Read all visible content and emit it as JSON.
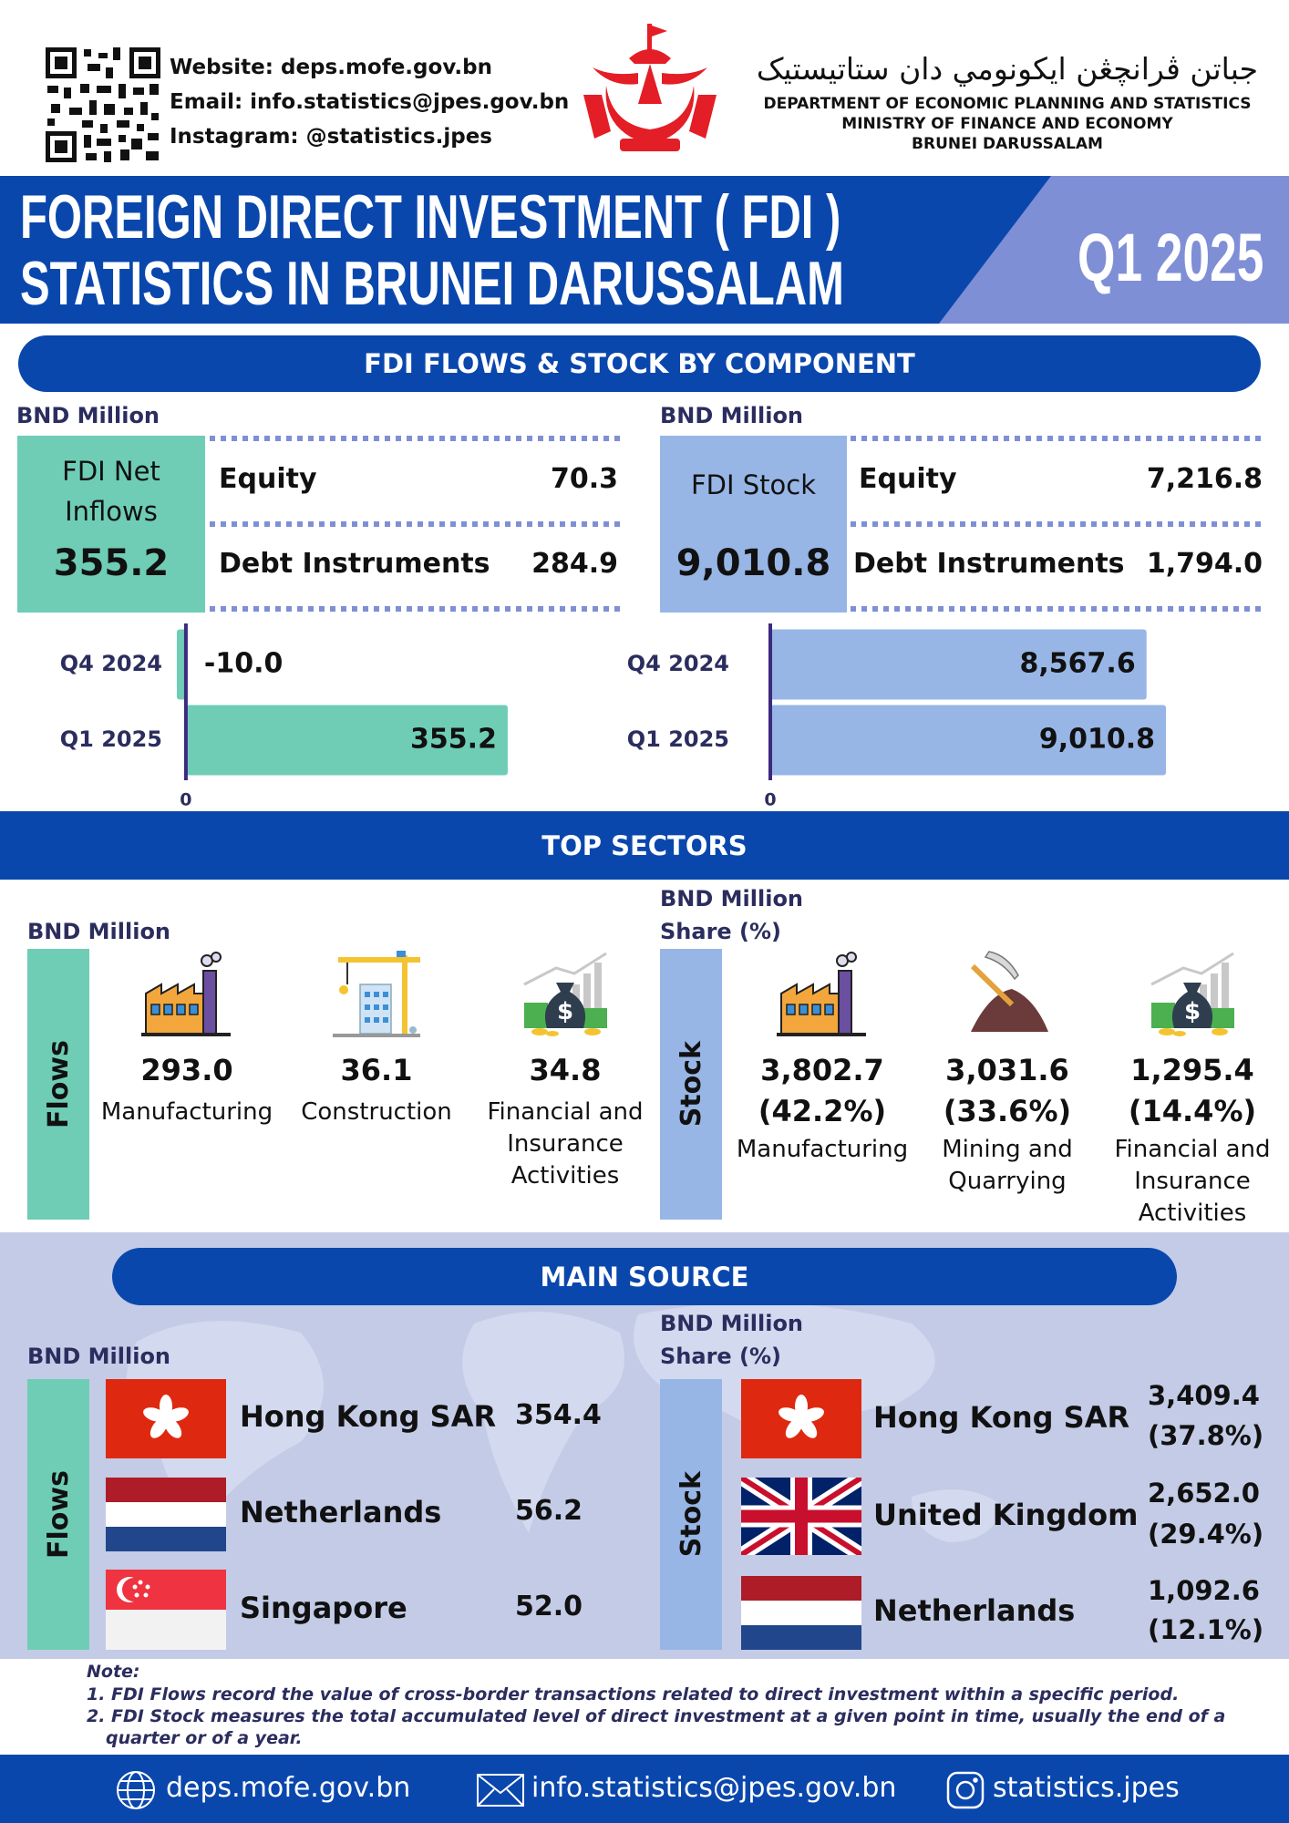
{
  "header": {
    "website": "Website: deps.mofe.gov.bn",
    "email": "Email: info.statistics@jpes.gov.bn",
    "instagram": "Instagram: @statistics.jpes",
    "dept_jawi": "جباتن ڤرانچڠن ايکونومي دان ستاتيستيک",
    "dept_lines": [
      "DEPARTMENT OF ECONOMIC PLANNING AND STATISTICS",
      "MINISTRY OF FINANCE AND ECONOMY",
      "BRUNEI DARUSSALAM"
    ]
  },
  "banner": {
    "title_lines": [
      "FOREIGN DIRECT INVESTMENT ( FDI )",
      "STATISTICS IN BRUNEI DARUSSALAM"
    ],
    "period": "Q1 2025"
  },
  "component": {
    "heading": "FDI FLOWS & STOCK BY COMPONENT",
    "flows": {
      "unit": "BND Million",
      "label": "FDI Net Inflows",
      "total": "355.2",
      "rows": [
        {
          "label": "Equity",
          "value": "70.3"
        },
        {
          "label": "Debt Instruments",
          "value": "284.9"
        }
      ]
    },
    "stock": {
      "unit": "BND Million",
      "label": "FDI Stock",
      "total": "9,010.8",
      "rows": [
        {
          "label": "Equity",
          "value": "7,216.8"
        },
        {
          "label": "Debt Instruments",
          "value": "1,794.0"
        }
      ]
    }
  },
  "chart_data": [
    {
      "type": "bar",
      "categories": [
        "Q4 2024",
        "Q1 2025"
      ],
      "values": [
        -10,
        355.2
      ],
      "value_labels": [
        "-10.0",
        "355.2"
      ],
      "color": "#6fcdb6",
      "xlim": [
        -14,
        479
      ],
      "xticks": [
        0
      ]
    },
    {
      "type": "bar",
      "categories": [
        "Q4 2024",
        "Q1 2025"
      ],
      "values": [
        8567.6,
        9010.8
      ],
      "value_labels": [
        "8,567.6",
        "9,010.8"
      ],
      "color": "#97b6e6",
      "xlim": [
        0,
        11210
      ],
      "xticks": [
        0
      ]
    }
  ],
  "top_sectors": {
    "heading": "TOP SECTORS",
    "flows": {
      "unit": "BND Million",
      "side_label": "Flows",
      "items": [
        {
          "value": "293.0",
          "label": "Manufacturing"
        },
        {
          "value": "36.1",
          "label": "Construction"
        },
        {
          "value": "34.8",
          "label": "Financial and Insurance Activities"
        }
      ]
    },
    "stock": {
      "unit_lines": [
        "BND Million",
        "Share (%)"
      ],
      "side_label": "Stock",
      "items": [
        {
          "value": "3,802.7",
          "share": "(42.2%)",
          "label": "Manufacturing"
        },
        {
          "value": "3,031.6",
          "share": "(33.6%)",
          "label": "Mining and Quarrying"
        },
        {
          "value": "1,295.4",
          "share": "(14.4%)",
          "label": "Financial and Insurance Activities"
        }
      ]
    }
  },
  "main_source": {
    "heading": "MAIN SOURCE",
    "flows": {
      "unit": "BND Million",
      "side_label": "Flows",
      "items": [
        {
          "country": "Hong Kong SAR",
          "value": "354.4"
        },
        {
          "country": "Netherlands",
          "value": "56.2"
        },
        {
          "country": "Singapore",
          "value": "52.0"
        }
      ]
    },
    "stock": {
      "unit_lines": [
        "BND Million",
        "Share (%)"
      ],
      "side_label": "Stock",
      "items": [
        {
          "country": "Hong Kong SAR",
          "value": "3,409.4",
          "share": "(37.8%)"
        },
        {
          "country": "United Kingdom",
          "value": "2,652.0",
          "share": "(29.4%)"
        },
        {
          "country": "Netherlands",
          "value": "1,092.6",
          "share": "(12.1%)"
        }
      ]
    }
  },
  "note": {
    "title": "Note:",
    "lines": [
      "1. FDI Flows record the value of cross-border transactions related to direct investment within a specific period.",
      "2. FDI Stock measures the total accumulated level of direct investment at a given point in time, usually the end of a quarter or of a year."
    ]
  },
  "footer": {
    "website": "deps.mofe.gov.bn",
    "email": "info.statistics@jpes.gov.bn",
    "instagram": "statistics.jpes"
  }
}
